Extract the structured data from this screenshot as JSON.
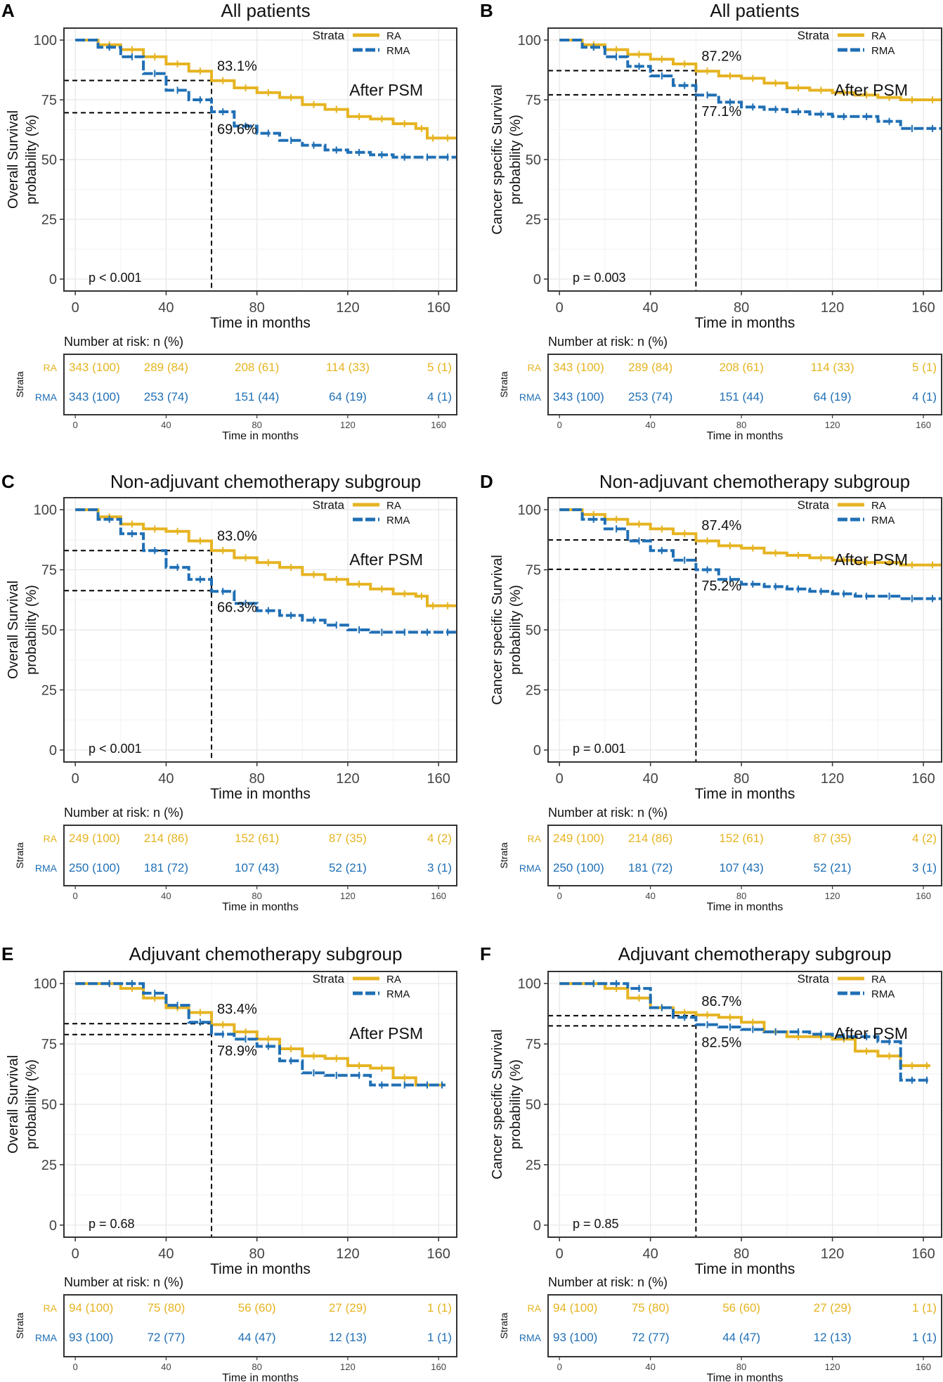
{
  "figure": {
    "colors": {
      "ra": "#E6B422",
      "rma": "#1F6FB5",
      "grid": "#E6E6E6",
      "axis": "#333333",
      "text": "#222222"
    },
    "x_label": "Time in months",
    "risk_title": "Number at risk: n (%)",
    "strata_label": "Strata",
    "legend_title": "Strata",
    "after_psm": "After PSM"
  },
  "chart_data": [
    {
      "type": "line",
      "panel_letter": "A",
      "title": "All patients",
      "ylabel_lines": [
        "Overall Survival",
        "probability (%)"
      ],
      "xlabel": "Time in months",
      "xlim": [
        -5,
        168
      ],
      "ylim": [
        -5,
        105
      ],
      "xticks": [
        0,
        40,
        80,
        120,
        160
      ],
      "yticks": [
        0,
        25,
        50,
        75,
        100
      ],
      "reference": {
        "x": 60,
        "y_ra": 83.1,
        "y_rma": 69.6,
        "label_ra": "83.1%",
        "label_rma": "69.6%"
      },
      "pvalue": "p < 0.001",
      "series": [
        {
          "name": "RA",
          "x": [
            0,
            10,
            20,
            30,
            40,
            50,
            60,
            70,
            80,
            90,
            100,
            110,
            120,
            130,
            140,
            150,
            155,
            160,
            168
          ],
          "y": [
            100,
            98,
            96,
            93,
            90,
            87,
            83,
            80,
            78,
            76,
            73,
            71,
            68,
            67,
            65,
            63,
            59,
            59,
            59
          ]
        },
        {
          "name": "RMA",
          "x": [
            0,
            10,
            20,
            30,
            40,
            50,
            60,
            70,
            80,
            90,
            100,
            110,
            120,
            130,
            140,
            150,
            160,
            168
          ],
          "y": [
            100,
            97,
            93,
            86,
            79,
            75,
            70,
            64,
            61,
            58,
            56,
            54,
            53,
            52,
            51,
            51,
            51,
            51
          ]
        }
      ],
      "risk_table": {
        "RA": [
          "343 (100)",
          "289 (84)",
          "208 (61)",
          "114 (33)",
          "5 (1)"
        ],
        "RMA": [
          "343 (100)",
          "253 (74)",
          "151 (44)",
          "64 (19)",
          "4 (1)"
        ]
      }
    },
    {
      "type": "line",
      "panel_letter": "B",
      "title": "All patients",
      "ylabel_lines": [
        "Cancer specific Survival",
        "probability (%)"
      ],
      "xlabel": "Time in months",
      "xlim": [
        -5,
        168
      ],
      "ylim": [
        -5,
        105
      ],
      "xticks": [
        0,
        40,
        80,
        120,
        160
      ],
      "yticks": [
        0,
        25,
        50,
        75,
        100
      ],
      "reference": {
        "x": 60,
        "y_ra": 87.2,
        "y_rma": 77.1,
        "label_ra": "87.2%",
        "label_rma": "77.1%"
      },
      "pvalue": "p = 0.003",
      "series": [
        {
          "name": "RA",
          "x": [
            0,
            10,
            20,
            30,
            40,
            50,
            60,
            70,
            80,
            90,
            100,
            110,
            120,
            130,
            140,
            150,
            160,
            168
          ],
          "y": [
            100,
            98,
            96,
            94,
            92,
            90,
            87,
            85,
            84,
            82,
            80,
            79,
            78,
            77,
            76,
            75,
            75,
            75
          ]
        },
        {
          "name": "RMA",
          "x": [
            0,
            10,
            20,
            30,
            40,
            50,
            60,
            70,
            80,
            90,
            100,
            110,
            120,
            130,
            140,
            150,
            160,
            168
          ],
          "y": [
            100,
            97,
            93,
            89,
            85,
            81,
            77,
            74,
            72,
            71,
            70,
            69,
            68,
            68,
            66,
            63,
            63,
            63
          ]
        }
      ],
      "risk_table": {
        "RA": [
          "343 (100)",
          "289 (84)",
          "208 (61)",
          "114 (33)",
          "5 (1)"
        ],
        "RMA": [
          "343 (100)",
          "253 (74)",
          "151 (44)",
          "64 (19)",
          "4 (1)"
        ]
      }
    },
    {
      "type": "line",
      "panel_letter": "C",
      "title": "Non-adjuvant chemotherapy subgroup",
      "ylabel_lines": [
        "Overall Survival",
        "probability (%)"
      ],
      "xlabel": "Time in months",
      "xlim": [
        -5,
        168
      ],
      "ylim": [
        -5,
        105
      ],
      "xticks": [
        0,
        40,
        80,
        120,
        160
      ],
      "yticks": [
        0,
        25,
        50,
        75,
        100
      ],
      "reference": {
        "x": 60,
        "y_ra": 83.0,
        "y_rma": 66.3,
        "label_ra": "83.0%",
        "label_rma": "66.3%"
      },
      "pvalue": "p < 0.001",
      "series": [
        {
          "name": "RA",
          "x": [
            0,
            10,
            20,
            30,
            40,
            50,
            60,
            70,
            80,
            90,
            100,
            110,
            120,
            130,
            140,
            150,
            155,
            160,
            168
          ],
          "y": [
            100,
            97,
            94,
            92,
            91,
            87,
            83,
            80,
            78,
            76,
            73,
            71,
            69,
            67,
            65,
            64,
            60,
            60,
            60
          ]
        },
        {
          "name": "RMA",
          "x": [
            0,
            10,
            20,
            30,
            40,
            50,
            60,
            70,
            80,
            90,
            100,
            110,
            120,
            130,
            140,
            150,
            160,
            168
          ],
          "y": [
            100,
            96,
            90,
            83,
            76,
            71,
            66,
            61,
            58,
            56,
            54,
            52,
            50,
            49,
            49,
            49,
            49,
            49
          ]
        }
      ],
      "risk_table": {
        "RA": [
          "249 (100)",
          "214 (86)",
          "152 (61)",
          "87 (35)",
          "4 (2)"
        ],
        "RMA": [
          "250 (100)",
          "181 (72)",
          "107 (43)",
          "52 (21)",
          "3 (1)"
        ]
      }
    },
    {
      "type": "line",
      "panel_letter": "D",
      "title": "Non-adjuvant chemotherapy subgroup",
      "ylabel_lines": [
        "Cancer specific Survival",
        "probability (%)"
      ],
      "xlabel": "Time in months",
      "xlim": [
        -5,
        168
      ],
      "ylim": [
        -5,
        105
      ],
      "xticks": [
        0,
        40,
        80,
        120,
        160
      ],
      "yticks": [
        0,
        25,
        50,
        75,
        100
      ],
      "reference": {
        "x": 60,
        "y_ra": 87.4,
        "y_rma": 75.2,
        "label_ra": "87.4%",
        "label_rma": "75.2%"
      },
      "pvalue": "p = 0.001",
      "series": [
        {
          "name": "RA",
          "x": [
            0,
            10,
            20,
            30,
            40,
            50,
            60,
            70,
            80,
            90,
            100,
            110,
            120,
            130,
            140,
            150,
            160,
            168
          ],
          "y": [
            100,
            98,
            96,
            94,
            92,
            90,
            87,
            85,
            84,
            82,
            81,
            80,
            79,
            78,
            78,
            77,
            77,
            77
          ]
        },
        {
          "name": "RMA",
          "x": [
            0,
            10,
            20,
            30,
            40,
            50,
            60,
            70,
            80,
            90,
            100,
            110,
            120,
            130,
            140,
            150,
            160,
            168
          ],
          "y": [
            100,
            96,
            92,
            87,
            83,
            79,
            75,
            71,
            69,
            68,
            67,
            66,
            65,
            64,
            64,
            63,
            63,
            63
          ]
        }
      ],
      "risk_table": {
        "RA": [
          "249 (100)",
          "214 (86)",
          "152 (61)",
          "87 (35)",
          "4 (2)"
        ],
        "RMA": [
          "250 (100)",
          "181 (72)",
          "107 (43)",
          "52 (21)",
          "3 (1)"
        ]
      }
    },
    {
      "type": "line",
      "panel_letter": "E",
      "title": "Adjuvant chemotherapy subgroup",
      "ylabel_lines": [
        "Overall Survival",
        "probability (%)"
      ],
      "xlabel": "Time in months",
      "xlim": [
        -5,
        168
      ],
      "ylim": [
        -5,
        105
      ],
      "xticks": [
        0,
        40,
        80,
        120,
        160
      ],
      "yticks": [
        0,
        25,
        50,
        75,
        100
      ],
      "reference": {
        "x": 60,
        "y_ra": 83.4,
        "y_rma": 78.9,
        "label_ra": "83.4%",
        "label_rma": "78.9%"
      },
      "pvalue": "p = 0.68",
      "series": [
        {
          "name": "RA",
          "x": [
            0,
            10,
            20,
            30,
            40,
            50,
            60,
            70,
            80,
            90,
            100,
            110,
            120,
            130,
            140,
            150,
            160,
            163
          ],
          "y": [
            100,
            100,
            98,
            94,
            90,
            88,
            83,
            80,
            77,
            73,
            70,
            69,
            66,
            65,
            61,
            58,
            58,
            58
          ]
        },
        {
          "name": "RMA",
          "x": [
            0,
            10,
            20,
            30,
            40,
            50,
            60,
            70,
            80,
            90,
            100,
            110,
            120,
            130,
            140,
            150,
            160,
            163
          ],
          "y": [
            100,
            100,
            100,
            96,
            91,
            84,
            79,
            77,
            74,
            68,
            63,
            62,
            62,
            58,
            58,
            58,
            58,
            58
          ]
        }
      ],
      "risk_table": {
        "RA": [
          "94 (100)",
          "75 (80)",
          "56 (60)",
          "27 (29)",
          "1 (1)"
        ],
        "RMA": [
          "93 (100)",
          "72 (77)",
          "44 (47)",
          "12 (13)",
          "1 (1)"
        ]
      }
    },
    {
      "type": "line",
      "panel_letter": "F",
      "title": "Adjuvant chemotherapy subgroup",
      "ylabel_lines": [
        "Cancer specific Survival",
        "probability (%)"
      ],
      "xlabel": "Time in months",
      "xlim": [
        -5,
        168
      ],
      "ylim": [
        -5,
        105
      ],
      "xticks": [
        0,
        40,
        80,
        120,
        160
      ],
      "yticks": [
        0,
        25,
        50,
        75,
        100
      ],
      "reference": {
        "x": 60,
        "y_ra": 86.7,
        "y_rma": 82.5,
        "label_ra": "86.7%",
        "label_rma": "82.5%"
      },
      "pvalue": "p = 0.85",
      "series": [
        {
          "name": "RA",
          "x": [
            0,
            10,
            20,
            30,
            40,
            50,
            60,
            70,
            80,
            90,
            100,
            110,
            120,
            130,
            140,
            150,
            160,
            163
          ],
          "y": [
            100,
            100,
            98,
            94,
            90,
            88,
            87,
            86,
            84,
            80,
            78,
            78,
            77,
            72,
            70,
            66,
            66,
            66
          ]
        },
        {
          "name": "RMA",
          "x": [
            0,
            10,
            20,
            30,
            40,
            50,
            60,
            70,
            80,
            90,
            100,
            110,
            120,
            130,
            140,
            150,
            160,
            163
          ],
          "y": [
            100,
            100,
            100,
            98,
            90,
            86,
            83,
            82,
            81,
            80,
            80,
            79,
            78,
            78,
            76,
            60,
            60,
            60
          ]
        }
      ],
      "risk_table": {
        "RA": [
          "94 (100)",
          "75 (80)",
          "56 (60)",
          "27 (29)",
          "1 (1)"
        ],
        "RMA": [
          "93 (100)",
          "72 (77)",
          "44 (47)",
          "12 (13)",
          "1 (1)"
        ]
      }
    }
  ]
}
